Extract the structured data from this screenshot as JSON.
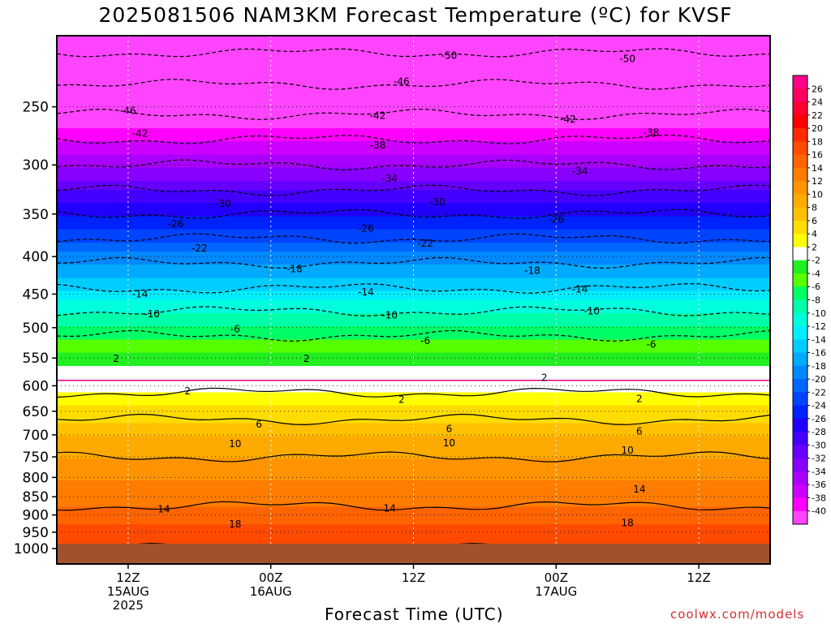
{
  "chart_data": {
    "type": "heatmap",
    "title": "2025081506 NAM3KM Forecast Temperature (ºC) for KVSF",
    "xlabel": "Forecast Time (UTC)",
    "ylabel": "",
    "credit": "coolwx.com/models",
    "y_axis": {
      "scale": "log-pressure",
      "range": [
        1000,
        200
      ],
      "ticks": [
        250,
        300,
        350,
        400,
        450,
        500,
        550,
        600,
        650,
        700,
        750,
        800,
        850,
        900,
        950,
        1000
      ]
    },
    "x_axis": {
      "range_hours": [
        0,
        60
      ],
      "ticks": [
        {
          "hour": 6,
          "lines": [
            "12Z",
            "15AUG",
            "2025"
          ]
        },
        {
          "hour": 18,
          "lines": [
            "00Z",
            "16AUG"
          ]
        },
        {
          "hour": 30,
          "lines": [
            "12Z"
          ]
        },
        {
          "hour": 42,
          "lines": [
            "00Z",
            "17AUG"
          ]
        },
        {
          "hour": 54,
          "lines": [
            "12Z"
          ]
        }
      ]
    },
    "temperature_profile": [
      {
        "p": 1000,
        "t": 18
      },
      {
        "p": 950,
        "t": 17
      },
      {
        "p": 900,
        "t": 15
      },
      {
        "p": 850,
        "t": 13
      },
      {
        "p": 800,
        "t": 12
      },
      {
        "p": 750,
        "t": 10
      },
      {
        "p": 700,
        "t": 8
      },
      {
        "p": 650,
        "t": 5
      },
      {
        "p": 600,
        "t": 1
      },
      {
        "p": 550,
        "t": -3
      },
      {
        "p": 500,
        "t": -7
      },
      {
        "p": 450,
        "t": -13
      },
      {
        "p": 400,
        "t": -19
      },
      {
        "p": 350,
        "t": -26
      },
      {
        "p": 300,
        "t": -34
      },
      {
        "p": 250,
        "t": -43
      },
      {
        "p": 200,
        "t": -52
      }
    ],
    "contour_labels": [
      {
        "hour": 33,
        "p": 213,
        "text": "-50"
      },
      {
        "hour": 48,
        "p": 215,
        "text": "-50"
      },
      {
        "hour": 29,
        "p": 231,
        "text": "-46"
      },
      {
        "hour": 6,
        "p": 253,
        "text": "-46"
      },
      {
        "hour": 27,
        "p": 257,
        "text": "-42"
      },
      {
        "hour": 43,
        "p": 260,
        "text": "-42"
      },
      {
        "hour": 7,
        "p": 272,
        "text": "-42"
      },
      {
        "hour": 27,
        "p": 282,
        "text": "-38"
      },
      {
        "hour": 50,
        "p": 271,
        "text": "-38"
      },
      {
        "hour": 28,
        "p": 313,
        "text": "-34"
      },
      {
        "hour": 44,
        "p": 306,
        "text": "-34"
      },
      {
        "hour": 14,
        "p": 339,
        "text": "-30"
      },
      {
        "hour": 32,
        "p": 337,
        "text": "-30"
      },
      {
        "hour": 10,
        "p": 361,
        "text": "-26"
      },
      {
        "hour": 26,
        "p": 366,
        "text": "-26"
      },
      {
        "hour": 42,
        "p": 356,
        "text": "-26"
      },
      {
        "hour": 12,
        "p": 390,
        "text": "-22"
      },
      {
        "hour": 31,
        "p": 384,
        "text": "-22"
      },
      {
        "hour": 20,
        "p": 416,
        "text": "-18"
      },
      {
        "hour": 40,
        "p": 418,
        "text": "-18"
      },
      {
        "hour": 7,
        "p": 450,
        "text": "-14"
      },
      {
        "hour": 26,
        "p": 447,
        "text": "-14"
      },
      {
        "hour": 44,
        "p": 443,
        "text": "-14"
      },
      {
        "hour": 8,
        "p": 479,
        "text": "-10"
      },
      {
        "hour": 28,
        "p": 481,
        "text": "-10"
      },
      {
        "hour": 45,
        "p": 475,
        "text": "-10"
      },
      {
        "hour": 15,
        "p": 502,
        "text": "-6"
      },
      {
        "hour": 31,
        "p": 521,
        "text": "-6"
      },
      {
        "hour": 50,
        "p": 527,
        "text": "-6"
      },
      {
        "hour": 5,
        "p": 551,
        "text": "2"
      },
      {
        "hour": 21,
        "p": 551,
        "text": "2"
      },
      {
        "hour": 41,
        "p": 585,
        "text": "2"
      },
      {
        "hour": 11,
        "p": 610,
        "text": "2"
      },
      {
        "hour": 29,
        "p": 627,
        "text": "2"
      },
      {
        "hour": 49,
        "p": 625,
        "text": "2"
      },
      {
        "hour": 17,
        "p": 677,
        "text": "6"
      },
      {
        "hour": 33,
        "p": 687,
        "text": "6"
      },
      {
        "hour": 49,
        "p": 692,
        "text": "6"
      },
      {
        "hour": 15,
        "p": 720,
        "text": "10"
      },
      {
        "hour": 33,
        "p": 718,
        "text": "10"
      },
      {
        "hour": 48,
        "p": 735,
        "text": "10"
      },
      {
        "hour": 49,
        "p": 830,
        "text": "14"
      },
      {
        "hour": 9,
        "p": 884,
        "text": "14"
      },
      {
        "hour": 28,
        "p": 882,
        "text": "14"
      },
      {
        "hour": 15,
        "p": 926,
        "text": "18"
      },
      {
        "hour": 48,
        "p": 923,
        "text": "18"
      }
    ],
    "colorbar": {
      "labels": [
        "26",
        "24",
        "22",
        "20",
        "18",
        "16",
        "14",
        "12",
        "10",
        "8",
        "6",
        "4",
        "2",
        "-2",
        "-4",
        "-6",
        "-8",
        "-10",
        "-12",
        "-14",
        "-16",
        "-18",
        "-20",
        "-22",
        "-24",
        "-26",
        "-28",
        "-30",
        "-32",
        "-34",
        "-36",
        "-38",
        "-40"
      ],
      "colors": [
        "#ff0088",
        "#ff0060",
        "#ff0030",
        "#ff0000",
        "#ff2a00",
        "#ff4a00",
        "#ff6400",
        "#ff7c00",
        "#ff9400",
        "#ffaa00",
        "#ffc000",
        "#ffdc00",
        "#ffff00",
        "#ffffff",
        "#22ee22",
        "#55ff00",
        "#00ff66",
        "#00ffaa",
        "#00ffdd",
        "#00eeff",
        "#00ccff",
        "#00aaff",
        "#0088ff",
        "#0066ff",
        "#0044ff",
        "#0022ff",
        "#2200ff",
        "#4400ff",
        "#6600ff",
        "#8800ff",
        "#aa00ff",
        "#cc00ff",
        "#ff00ff",
        "#ff44ff"
      ]
    },
    "ground_color": "#a0522d",
    "freezing_line_color": "#e0007a"
  }
}
